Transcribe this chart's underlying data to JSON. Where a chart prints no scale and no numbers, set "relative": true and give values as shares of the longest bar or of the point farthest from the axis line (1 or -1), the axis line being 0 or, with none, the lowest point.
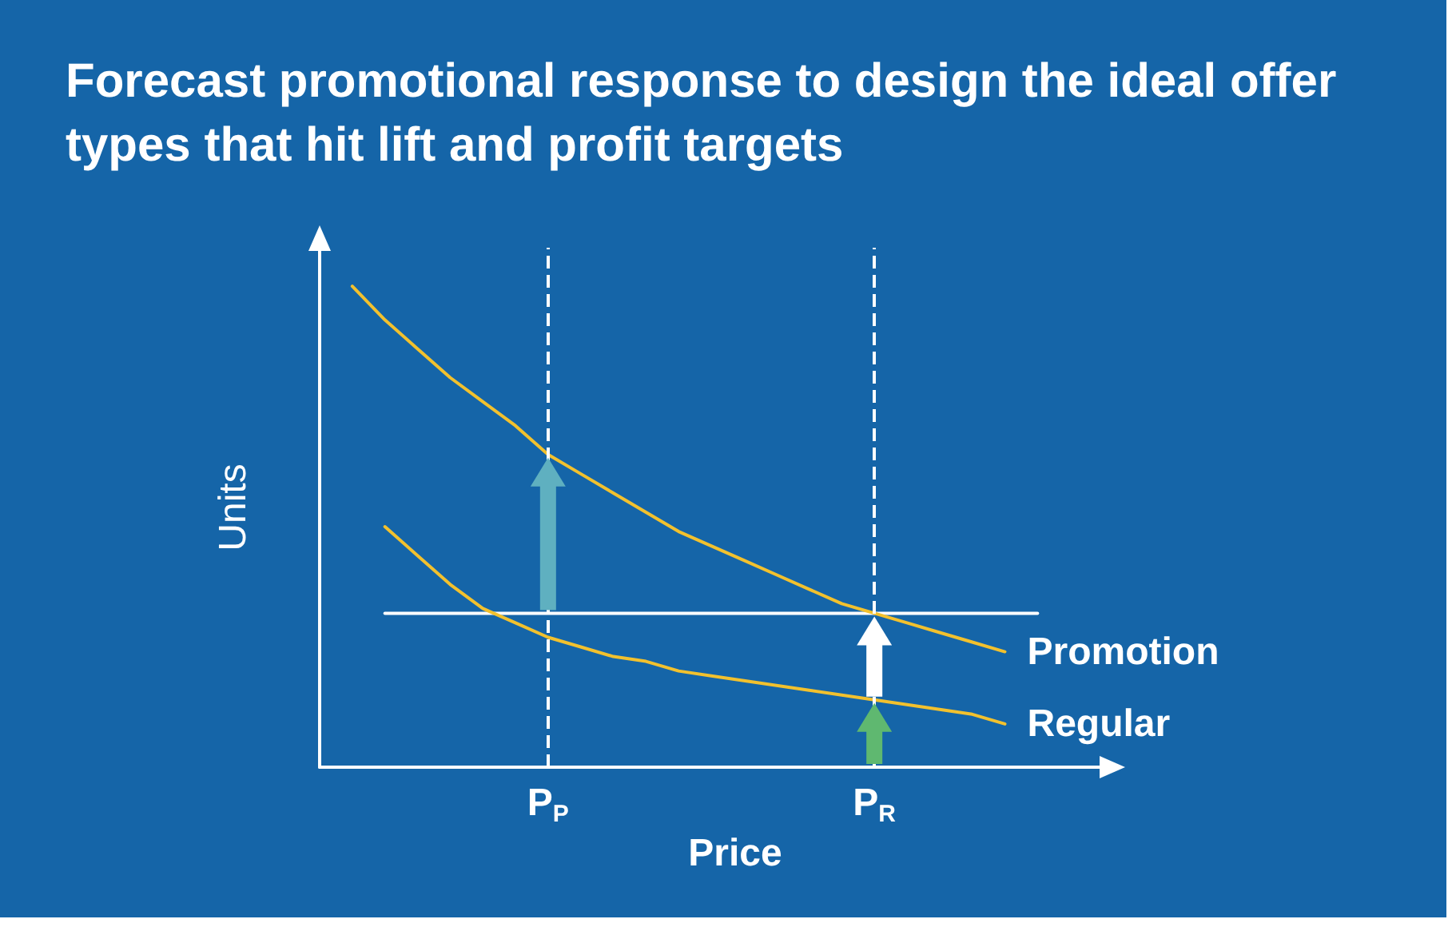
{
  "chart_data": {
    "type": "line",
    "title": "Forecast promotional response to design the ideal offer types that hit lift and profit targets",
    "xlabel": "Price",
    "ylabel": "Units",
    "relative": true,
    "marker": "none",
    "line_style": "solid",
    "legend": false,
    "grid": false,
    "categories": [
      null,
      null,
      null,
      null,
      null,
      null,
      null,
      "P$_{P}$",
      null,
      null,
      null,
      null,
      null,
      null,
      null,
      null,
      null,
      "P$_{R}$",
      null,
      null,
      null,
      null,
      null,
      null,
      null
    ],
    "series": [
      {
        "name": "Promotion",
        "color": "#f2c12e",
        "values": [
          null,
          1,
          0.93,
          0.87,
          0.81,
          0.76,
          0.71,
          0.65,
          0.61,
          0.57,
          0.53,
          0.49,
          0.46,
          0.43,
          0.4,
          0.37,
          0.34,
          0.32,
          0.3,
          0.28,
          0.26,
          0.24,
          null,
          null,
          null
        ]
      },
      {
        "name": "Regular",
        "color": "#f2c12e",
        "values": [
          null,
          null,
          0.5,
          0.44,
          0.38,
          0.33,
          0.3,
          0.27,
          0.25,
          0.23,
          0.22,
          0.2,
          0.19,
          0.18,
          0.17,
          0.16,
          0.15,
          0.14,
          0.13,
          0.12,
          0.11,
          0.09,
          null,
          null,
          null
        ]
      },
      {
        "color": "#ffffff",
        "values": [
          null,
          null,
          0.32,
          null,
          null,
          null,
          null,
          null,
          null,
          null,
          null,
          null,
          null,
          null,
          null,
          null,
          null,
          null,
          null,
          null,
          null,
          null,
          0.32,
          null,
          null
        ]
      }
    ],
    "ref_lines": [
      {
        "axis": "x",
        "value": "P$_{P}$",
        "color": "#ffffff",
        "line_style": "dashed"
      },
      {
        "axis": "x",
        "value": "P$_{R}$",
        "color": "#ffffff",
        "line_style": "dashed"
      }
    ]
  }
}
